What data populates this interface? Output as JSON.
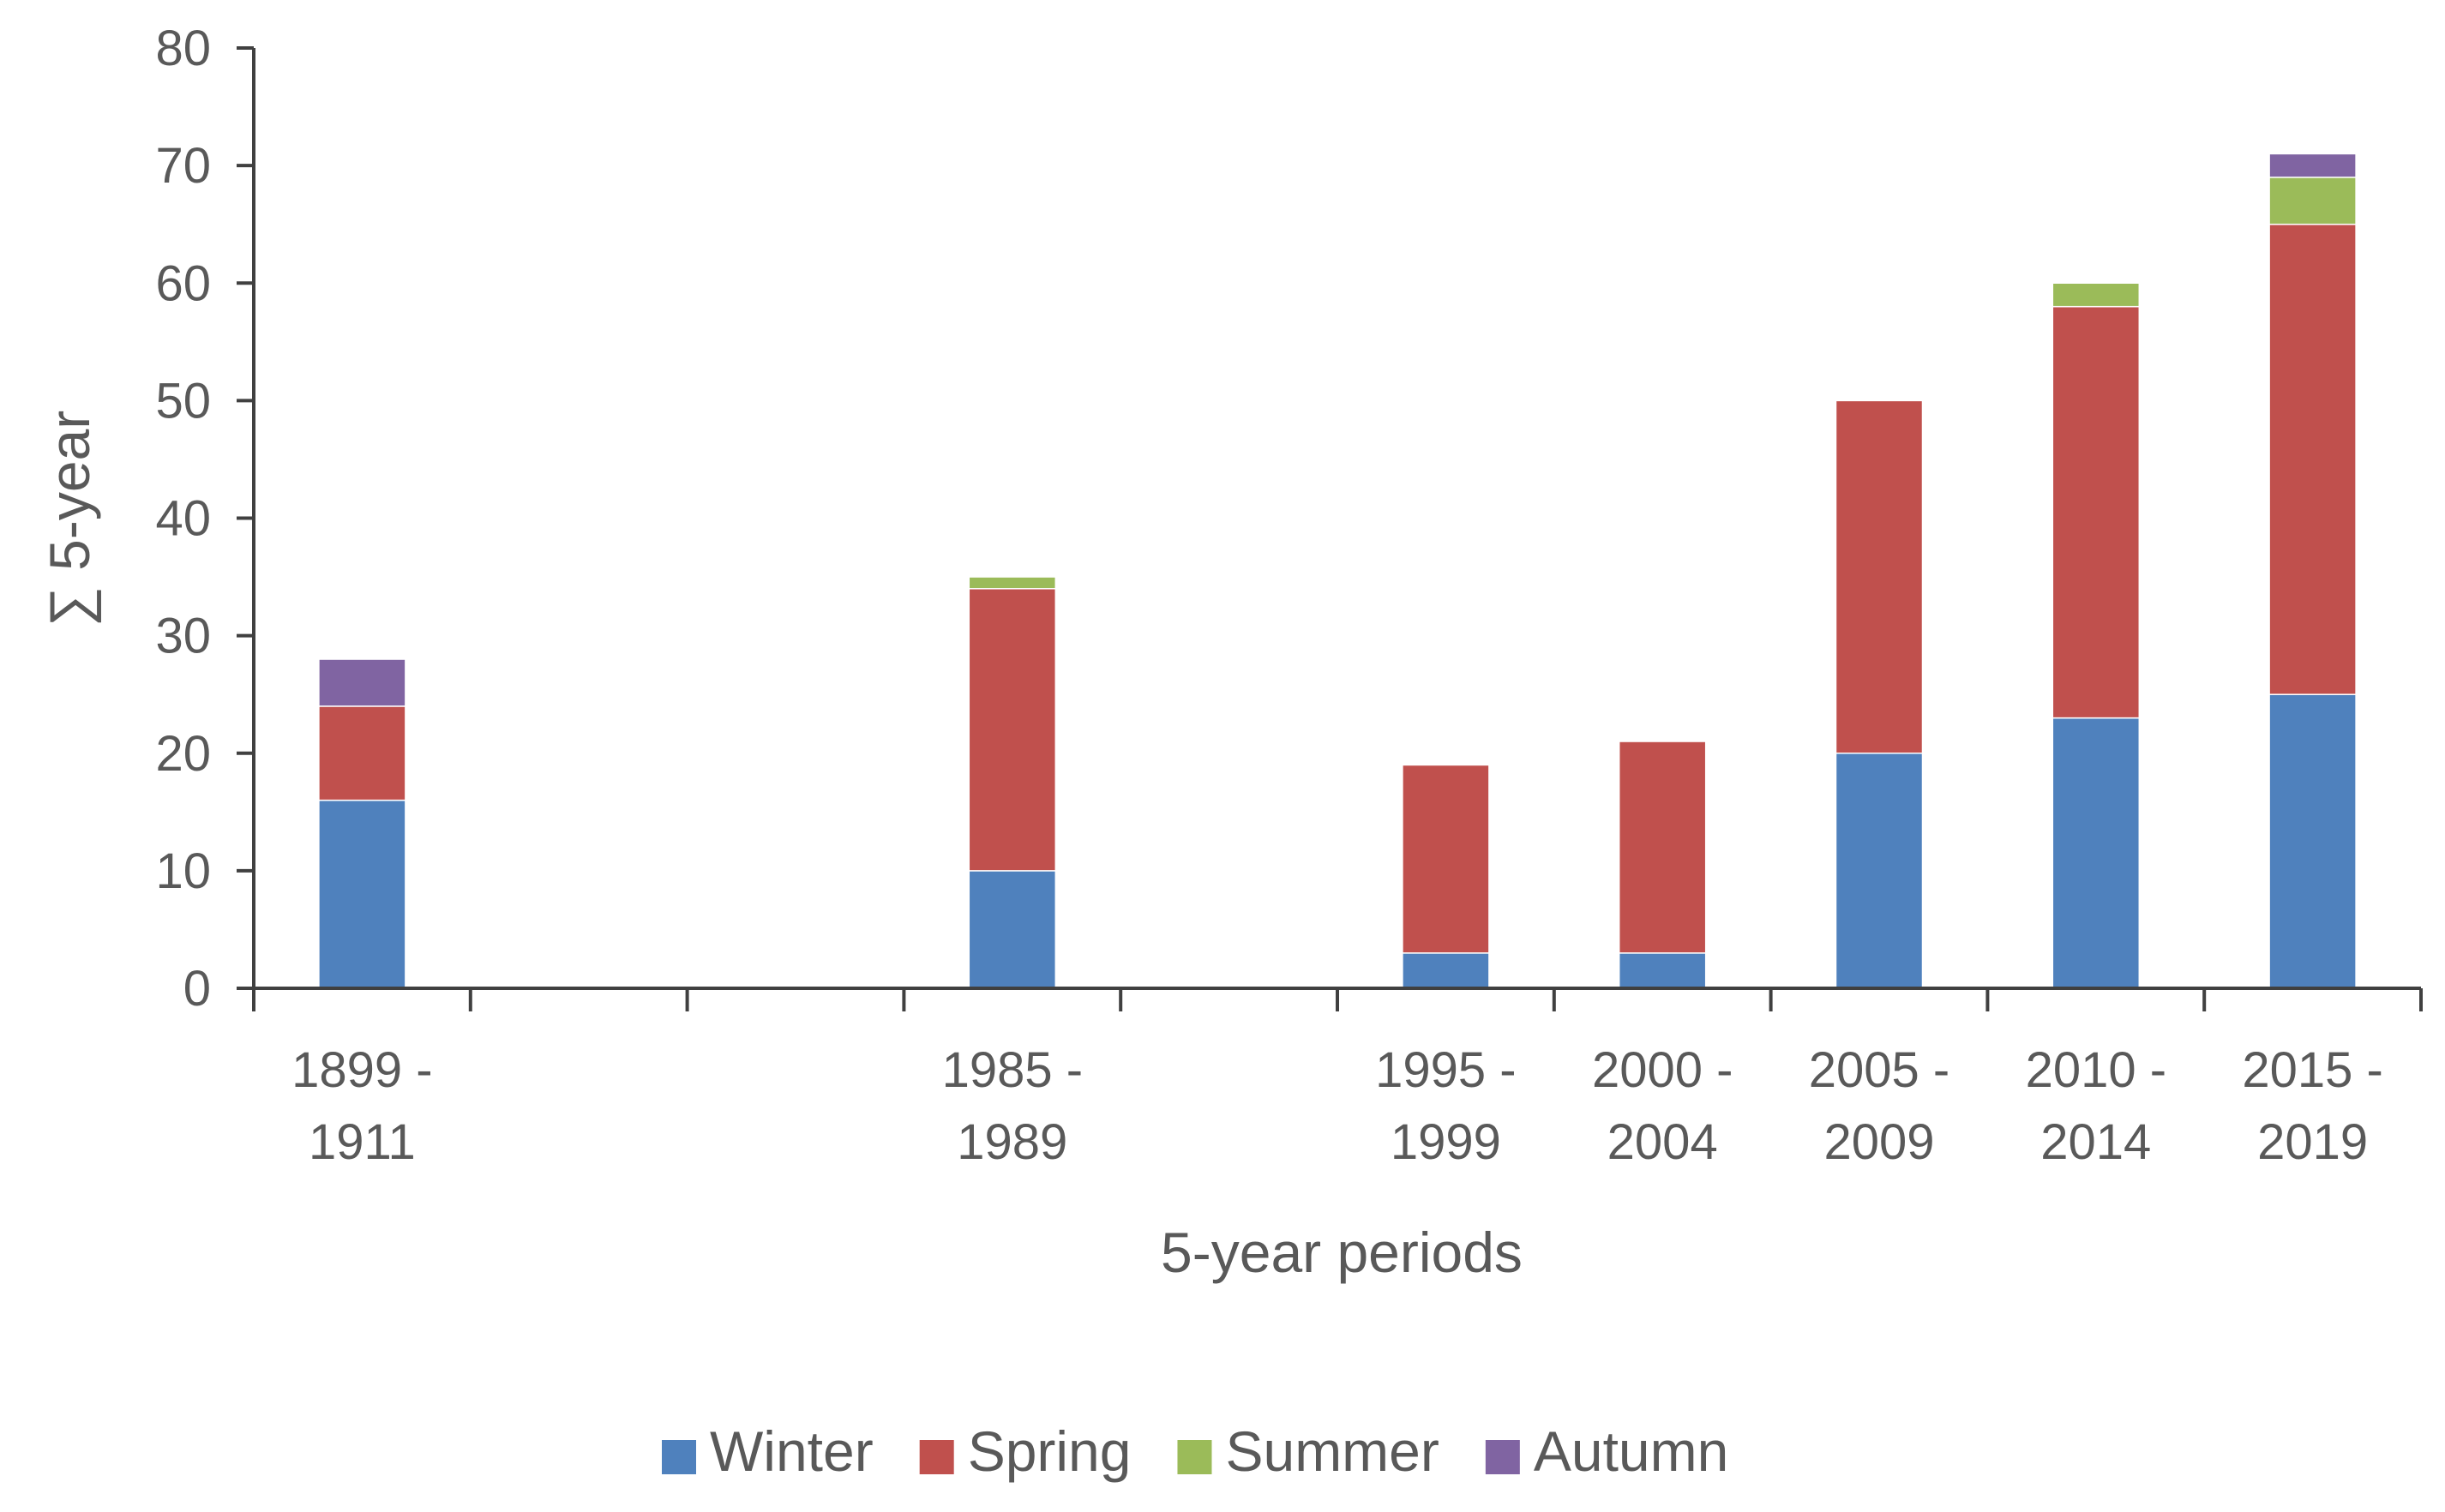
{
  "chart_data": {
    "type": "bar",
    "stacked": true,
    "xlabel": "5-year periods",
    "ylabel": "∑ 5-year",
    "ylim": [
      0,
      80
    ],
    "yticks": [
      0,
      10,
      20,
      30,
      40,
      50,
      60,
      70,
      80
    ],
    "grid": false,
    "legend_position": "bottom",
    "categories": [
      [
        "1899 -",
        "1911"
      ],
      [
        "",
        ""
      ],
      [
        "",
        ""
      ],
      [
        "1985 -",
        "1989"
      ],
      [
        "",
        ""
      ],
      [
        "1995 -",
        "1999"
      ],
      [
        "2000 -",
        "2004"
      ],
      [
        "2005 -",
        "2009"
      ],
      [
        "2010 -",
        "2014"
      ],
      [
        "2015 -",
        "2019"
      ]
    ],
    "series": [
      {
        "name": "Winter",
        "color": "#4F81BD",
        "values": [
          16,
          0,
          0,
          10,
          0,
          3,
          3,
          20,
          23,
          25
        ]
      },
      {
        "name": "Spring",
        "color": "#C0504D",
        "values": [
          8,
          0,
          0,
          24,
          0,
          16,
          18,
          30,
          35,
          40
        ]
      },
      {
        "name": "Summer",
        "color": "#9BBB59",
        "values": [
          0,
          0,
          0,
          1,
          0,
          0,
          0,
          0,
          2,
          4
        ]
      },
      {
        "name": "Autumn",
        "color": "#8064A2",
        "values": [
          4,
          0,
          0,
          0,
          0,
          0,
          0,
          0,
          0,
          2
        ]
      }
    ]
  }
}
